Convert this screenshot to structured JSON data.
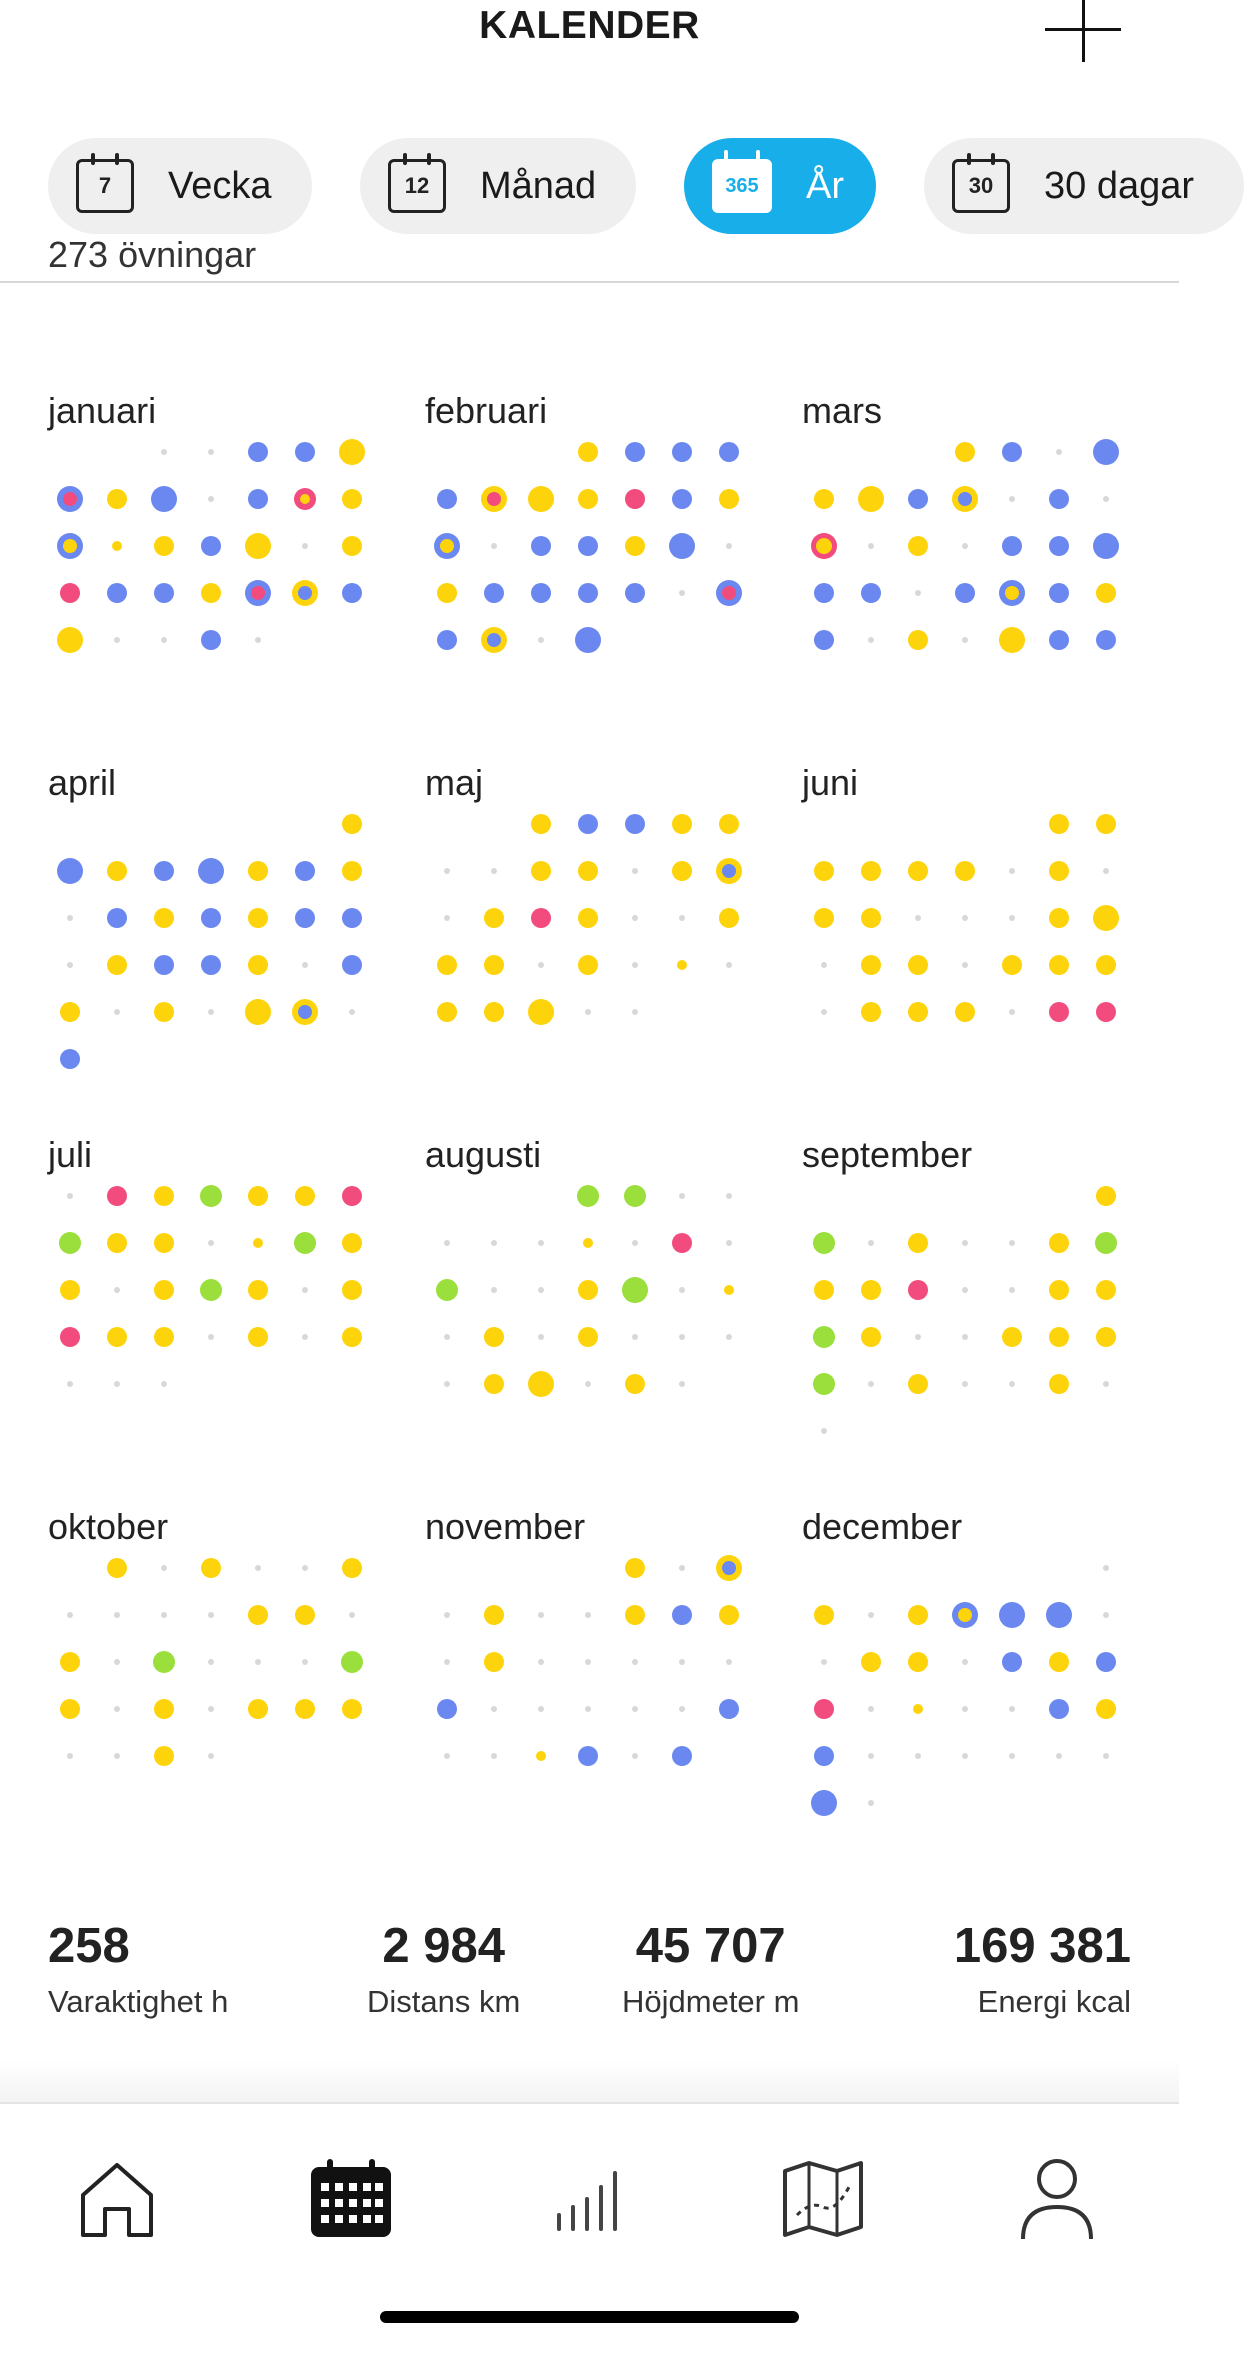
{
  "header": {
    "title": "KALENDER"
  },
  "tabs": [
    {
      "label": "Vecka",
      "icon_number": "7",
      "active": false
    },
    {
      "label": "Månad",
      "icon_number": "12",
      "active": false
    },
    {
      "label": "År",
      "icon_number": "365",
      "active": true
    },
    {
      "label": "30 dagar",
      "icon_number": "30",
      "active": false
    }
  ],
  "summary_cut_text": "273 övningar",
  "colors": {
    "blue": "#6a88ef",
    "yellow": "#fdd40b",
    "pink": "#f24c7e",
    "green": "#9adf3c",
    "empty": "#d8d8d8",
    "accent": "#17aeea"
  },
  "months": [
    {
      "name": "januari",
      "days": [
        "e",
        "e",
        "b",
        "b",
        "Y",
        "P",
        "y",
        "B",
        "e",
        "b",
        "S",
        "y",
        "B",
        "s",
        "y",
        "b",
        "Y",
        "e",
        "y",
        "p",
        "b",
        "b",
        "y",
        "P",
        "Y",
        "b",
        "Y",
        "e",
        "e",
        "b",
        "e"
      ]
    },
    {
      "name": "februari",
      "days": [
        "y",
        "b",
        "b",
        "b",
        "b",
        "Q",
        "Y",
        "y",
        "p",
        "b",
        "y",
        "B",
        "e",
        "b",
        "b",
        "y",
        "B",
        "e",
        "y",
        "b",
        "b",
        "b",
        "b",
        "e",
        "P",
        "b",
        "Y",
        "e",
        "B"
      ]
    },
    {
      "name": "mars",
      "days": [
        "y",
        "b",
        "e",
        "B",
        "y",
        "Y",
        "b",
        "Y",
        "e",
        "b",
        "e",
        "R",
        "e",
        "y",
        "e",
        "b",
        "b",
        "B",
        "b",
        "b",
        "e",
        "b",
        "B",
        "b",
        "y",
        "b",
        "e",
        "y",
        "e",
        "Y",
        "b",
        "b"
      ]
    },
    {
      "name": "april",
      "days": [
        "y",
        "B",
        "y",
        "b",
        "B",
        "y",
        "b",
        "y",
        "e",
        "b",
        "y",
        "b",
        "y",
        "b",
        "b",
        "e",
        "y",
        "b",
        "b",
        "y",
        "e",
        "b",
        "y",
        "e",
        "y",
        "e",
        "Y",
        "Y",
        "e",
        "b"
      ]
    },
    {
      "name": "maj",
      "days": [
        "y",
        "b",
        "b",
        "y",
        "y",
        "e",
        "e",
        "y",
        "y",
        "e",
        "y",
        "Y",
        "e",
        "y",
        "p",
        "y",
        "e",
        "e",
        "y",
        "y",
        "y",
        "e",
        "y",
        "e",
        "s",
        "e",
        "y",
        "y",
        "Y",
        "e",
        "e"
      ]
    },
    {
      "name": "juni",
      "days": [
        "y",
        "y",
        "y",
        "y",
        "y",
        "y",
        "e",
        "y",
        "e",
        "y",
        "y",
        "e",
        "e",
        "e",
        "y",
        "Y",
        "e",
        "y",
        "y",
        "e",
        "y",
        "y",
        "y",
        "e",
        "y",
        "y",
        "y",
        "e",
        "p",
        "p"
      ]
    },
    {
      "name": "juli",
      "days": [
        "e",
        "p",
        "y",
        "g",
        "y",
        "y",
        "p",
        "g",
        "y",
        "y",
        "e",
        "s",
        "g",
        "y",
        "y",
        "e",
        "y",
        "g",
        "y",
        "e",
        "y",
        "p",
        "y",
        "y",
        "e",
        "y",
        "e",
        "y",
        "e",
        "e",
        "e"
      ]
    },
    {
      "name": "augusti",
      "days": [
        "g",
        "g",
        "e",
        "e",
        "e",
        "e",
        "e",
        "s",
        "e",
        "p",
        "e",
        "g",
        "e",
        "e",
        "y",
        "G",
        "e",
        "s",
        "e",
        "y",
        "e",
        "y",
        "e",
        "e",
        "e",
        "e",
        "y",
        "Y",
        "e",
        "y",
        "e"
      ]
    },
    {
      "name": "september",
      "days": [
        "y",
        "g",
        "e",
        "y",
        "e",
        "e",
        "y",
        "g",
        "y",
        "y",
        "p",
        "e",
        "e",
        "y",
        "y",
        "g",
        "y",
        "e",
        "e",
        "y",
        "y",
        "y",
        "g",
        "e",
        "y",
        "e",
        "e",
        "y",
        "e",
        "e"
      ]
    },
    {
      "name": "oktober",
      "days": [
        "y",
        "e",
        "y",
        "e",
        "e",
        "y",
        "e",
        "e",
        "e",
        "e",
        "y",
        "y",
        "e",
        "y",
        "e",
        "g",
        "e",
        "e",
        "e",
        "g",
        "y",
        "e",
        "y",
        "e",
        "y",
        "y",
        "y",
        "e",
        "e",
        "y",
        "e"
      ]
    },
    {
      "name": "november",
      "days": [
        "y",
        "e",
        "Y",
        "e",
        "y",
        "e",
        "e",
        "y",
        "b",
        "y",
        "e",
        "y",
        "e",
        "e",
        "e",
        "e",
        "e",
        "b",
        "e",
        "e",
        "e",
        "e",
        "e",
        "b",
        "e",
        "e",
        "s",
        "b",
        "e",
        "b"
      ]
    },
    {
      "name": "december",
      "days": [
        "e",
        "y",
        "e",
        "y",
        "B",
        "B",
        "B",
        "e",
        "e",
        "y",
        "y",
        "e",
        "b",
        "y",
        "b",
        "p",
        "e",
        "s",
        "e",
        "e",
        "b",
        "y",
        "b",
        "e",
        "e",
        "e",
        "e",
        "e",
        "e",
        "B",
        "e"
      ]
    }
  ],
  "stats": [
    {
      "value": "258",
      "label": "Varaktighet h"
    },
    {
      "value": "2 984",
      "label": "Distans km"
    },
    {
      "value": "45 707",
      "label": "Höjdmeter m"
    },
    {
      "value": "169 381",
      "label": "Energi kcal"
    }
  ],
  "nav": [
    {
      "name": "home-icon",
      "active": false
    },
    {
      "name": "calendar-icon",
      "active": true
    },
    {
      "name": "diary-chart-icon",
      "active": false
    },
    {
      "name": "map-icon",
      "active": false
    },
    {
      "name": "profile-icon",
      "active": false
    }
  ]
}
